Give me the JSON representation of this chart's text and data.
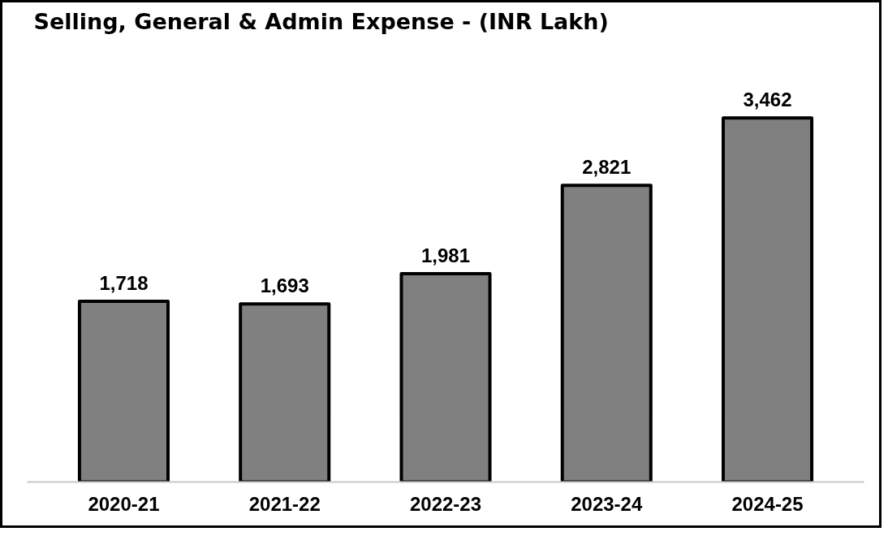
{
  "chart_data": {
    "type": "bar",
    "title": "Selling, General & Admin Expense - (INR Lakh)",
    "categories": [
      "2020-21",
      "2021-22",
      "2022-23",
      "2023-24",
      "2024-25"
    ],
    "values": [
      1718,
      1693,
      1981,
      2821,
      3462
    ],
    "value_labels": [
      "1,718",
      "1,693",
      "1,981",
      "2,821",
      "3,462"
    ],
    "color": "#808080",
    "tick_labels": "x",
    "grid": false
  }
}
